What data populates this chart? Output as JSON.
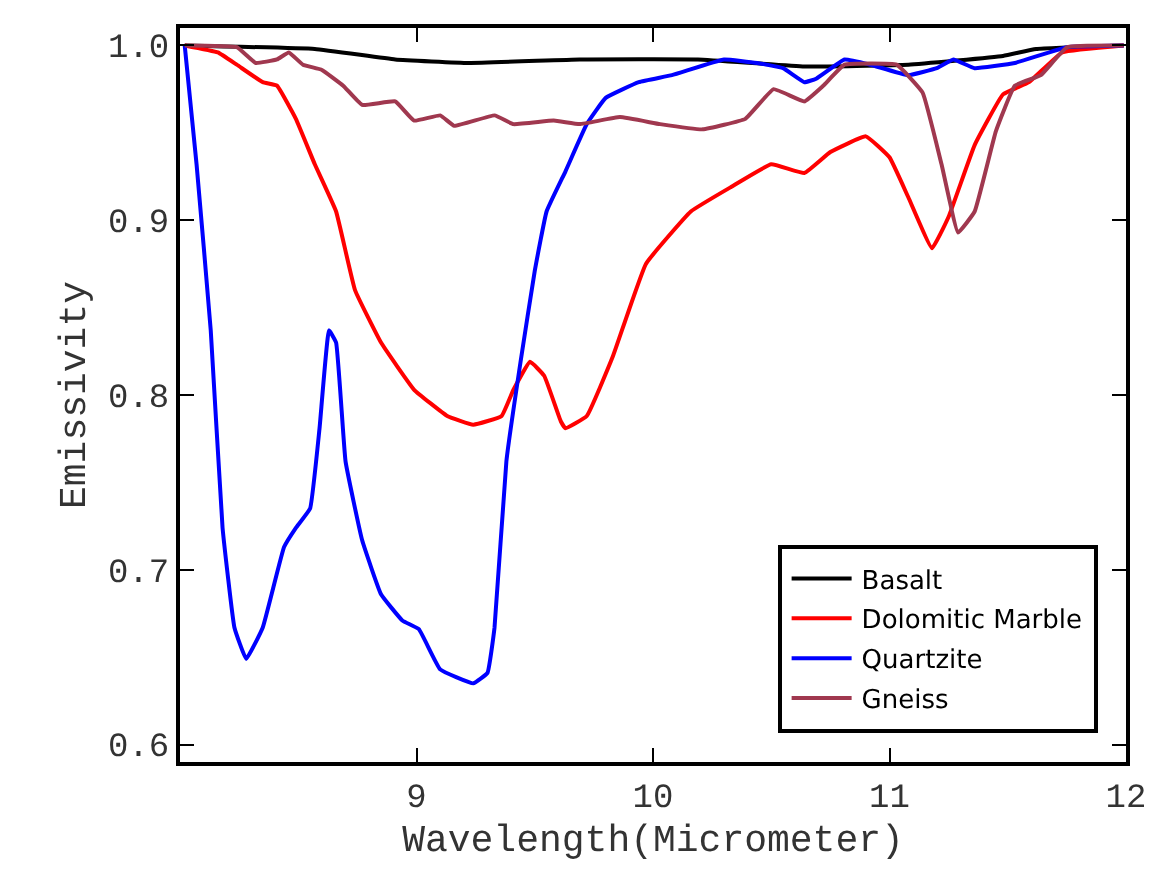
{
  "chart_data": {
    "type": "line",
    "xlabel": "Wavelength(Micrometer)",
    "ylabel": "Emissivity",
    "xlim": [
      8.0,
      12.0
    ],
    "ylim": [
      0.59,
      1.01
    ],
    "xticks": [
      9,
      10,
      11,
      12
    ],
    "yticks": [
      0.6,
      0.7,
      0.8,
      0.9,
      {
        "value": 1.0,
        "label": "1.0"
      }
    ],
    "legend": "bottom right",
    "line_style": "solid",
    "marker": "none",
    "series": [
      {
        "name": "Basalt",
        "color": "#000000",
        "x": [
          8.02,
          8.57,
          8.91,
          9.22,
          9.69,
          10.19,
          10.64,
          11.08,
          11.48,
          11.62,
          11.99
        ],
        "values": [
          1.0,
          0.998,
          0.992,
          0.99,
          0.992,
          0.992,
          0.988,
          0.989,
          0.994,
          0.998,
          1.0
        ]
      },
      {
        "name": "Dolomitic Marble",
        "color": "#ff0000",
        "x": [
          8.02,
          8.16,
          8.24,
          8.35,
          8.41,
          8.49,
          8.57,
          8.66,
          8.74,
          8.85,
          8.99,
          9.13,
          9.24,
          9.36,
          9.41,
          9.48,
          9.54,
          9.61,
          9.63,
          9.72,
          9.83,
          9.97,
          10.16,
          10.33,
          10.5,
          10.64,
          10.75,
          10.9,
          11.0,
          11.08,
          11.18,
          11.25,
          11.36,
          11.48,
          11.59,
          11.73,
          11.99
        ],
        "values": [
          1.0,
          0.996,
          0.989,
          0.979,
          0.977,
          0.958,
          0.932,
          0.905,
          0.86,
          0.83,
          0.803,
          0.788,
          0.783,
          0.788,
          0.803,
          0.819,
          0.811,
          0.785,
          0.781,
          0.788,
          0.822,
          0.875,
          0.905,
          0.919,
          0.932,
          0.927,
          0.939,
          0.948,
          0.936,
          0.913,
          0.884,
          0.902,
          0.943,
          0.972,
          0.979,
          0.996,
          1.0
        ]
      },
      {
        "name": "Quartzite",
        "color": "#0000ff",
        "x": [
          8.02,
          8.07,
          8.13,
          8.18,
          8.23,
          8.28,
          8.35,
          8.44,
          8.49,
          8.55,
          8.59,
          8.63,
          8.66,
          8.7,
          8.77,
          8.85,
          8.94,
          9.01,
          9.1,
          9.24,
          9.3,
          9.33,
          9.38,
          9.44,
          9.5,
          9.55,
          9.63,
          9.72,
          9.8,
          9.94,
          10.08,
          10.3,
          10.44,
          10.55,
          10.64,
          10.69,
          10.81,
          10.92,
          11.08,
          11.2,
          11.27,
          11.36,
          11.53,
          11.75,
          11.99
        ],
        "values": [
          1.0,
          0.932,
          0.837,
          0.724,
          0.667,
          0.649,
          0.667,
          0.713,
          0.724,
          0.735,
          0.781,
          0.837,
          0.83,
          0.762,
          0.717,
          0.686,
          0.671,
          0.666,
          0.643,
          0.635,
          0.641,
          0.667,
          0.762,
          0.819,
          0.871,
          0.905,
          0.928,
          0.955,
          0.97,
          0.979,
          0.983,
          0.992,
          0.99,
          0.987,
          0.979,
          0.981,
          0.992,
          0.989,
          0.983,
          0.987,
          0.992,
          0.987,
          0.99,
          0.999,
          1.0
        ]
      },
      {
        "name": "Gneiss",
        "color": "#a0384f",
        "x": [
          8.02,
          8.24,
          8.32,
          8.41,
          8.46,
          8.52,
          8.6,
          8.69,
          8.77,
          8.91,
          8.99,
          9.1,
          9.16,
          9.33,
          9.41,
          9.58,
          9.69,
          9.86,
          10.03,
          10.21,
          10.39,
          10.51,
          10.64,
          10.72,
          10.81,
          11.03,
          11.14,
          11.22,
          11.29,
          11.36,
          11.45,
          11.53,
          11.64,
          11.75,
          11.99
        ],
        "values": [
          1.0,
          0.999,
          0.99,
          0.992,
          0.996,
          0.989,
          0.986,
          0.977,
          0.966,
          0.968,
          0.957,
          0.96,
          0.954,
          0.96,
          0.955,
          0.957,
          0.955,
          0.959,
          0.955,
          0.952,
          0.958,
          0.975,
          0.968,
          0.977,
          0.989,
          0.989,
          0.973,
          0.932,
          0.893,
          0.905,
          0.951,
          0.977,
          0.983,
          0.999,
          1.0
        ]
      }
    ]
  }
}
